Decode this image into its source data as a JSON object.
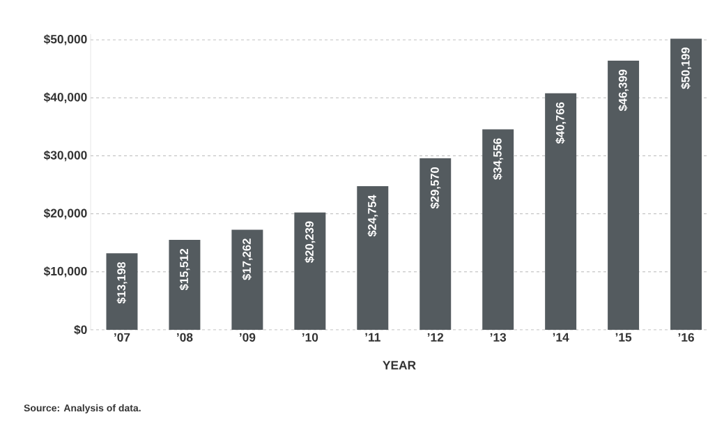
{
  "chart_data": {
    "type": "bar",
    "xlabel": "YEAR",
    "categories": [
      "’07",
      "’08",
      "’09",
      "’10",
      "’11",
      "’12",
      "’13",
      "’14",
      "’15",
      "’16"
    ],
    "values": [
      13198,
      15512,
      17262,
      20239,
      24754,
      29570,
      34556,
      40766,
      46399,
      50199
    ],
    "value_labels": [
      "$13,198",
      "$15,512",
      "$17,262",
      "$20,239",
      "$24,754",
      "$29,570",
      "$34,556",
      "$40,766",
      "$46,399",
      "$50,199"
    ],
    "color": "#545b5f",
    "ylim": [
      0,
      51000
    ],
    "yticks": [
      {
        "value": 0,
        "label": "$0"
      },
      {
        "value": 10000,
        "label": "$10,000"
      },
      {
        "value": 20000,
        "label": "$20,000"
      },
      {
        "value": 30000,
        "label": "$30,000"
      },
      {
        "value": 40000,
        "label": "$40,000"
      },
      {
        "value": 50000,
        "label": "$50,000"
      }
    ],
    "grid": "y",
    "annotations": [
      "Source: Analysis of data."
    ]
  }
}
